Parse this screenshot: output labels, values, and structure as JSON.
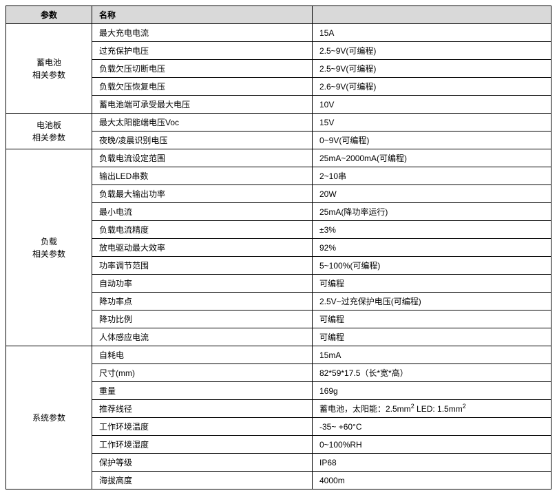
{
  "header": {
    "param": "参数",
    "name": "名称",
    "value": ""
  },
  "sections": [
    {
      "label": "蓄电池\n相关参数",
      "rows": [
        {
          "name": "最大充电电流",
          "value": "15A"
        },
        {
          "name": "过充保护电压",
          "value": "2.5~9V(可编程)"
        },
        {
          "name": "负载欠压切断电压",
          "value": "2.5~9V(可编程)"
        },
        {
          "name": "负载欠压恢复电压",
          "value": "2.6~9V(可编程)"
        },
        {
          "name": "蓄电池端可承受最大电压",
          "value": "10V"
        }
      ]
    },
    {
      "label": "电池板\n相关参数",
      "rows": [
        {
          "name": "最大太阳能端电压Voc",
          "value": "15V"
        },
        {
          "name": "夜晚/凌晨识别电压",
          "value": "0~9V(可编程)"
        }
      ]
    },
    {
      "label": "负载\n相关参数",
      "rows": [
        {
          "name": "负载电流设定范围",
          "value": "25mA~2000mA(可编程)"
        },
        {
          "name": "输出LED串数",
          "value": "2~10串"
        },
        {
          "name": "负载最大输出功率",
          "value": "20W"
        },
        {
          "name": "最小电流",
          "value": "25mA(降功率运行)"
        },
        {
          "name": "负载电流精度",
          "value": "±3%"
        },
        {
          "name": "放电驱动最大效率",
          "value": "92%"
        },
        {
          "name": "功率调节范围",
          "value": "5~100%(可编程)"
        },
        {
          "name": "自动功率",
          "value": "可编程"
        },
        {
          "name": "降功率点",
          "value": "2.5V~过充保护电压(可编程)"
        },
        {
          "name": "降功比例",
          "value": "可编程"
        },
        {
          "name": "人体感应电流",
          "value": "可编程"
        }
      ]
    },
    {
      "label": "系统参数",
      "rows": [
        {
          "name": "自耗电",
          "value": "15mA"
        },
        {
          "name": "尺寸(mm)",
          "value": "82*59*17.5（长*宽*高）"
        },
        {
          "name": "重量",
          "value": "169g"
        },
        {
          "name": "推荐线径",
          "value": "蓄电池，太阳能：2.5mm²   LED: 1.5mm²",
          "html": true
        },
        {
          "name": "工作环境温度",
          "value": "-35~ +60°C"
        },
        {
          "name": "工作环境湿度",
          "value": "0~100%RH"
        },
        {
          "name": "保护等级",
          "value": "IP68"
        },
        {
          "name": "海拔高度",
          "value": "4000m"
        }
      ]
    }
  ],
  "wire_value_parts": {
    "prefix": "蓄电池，太阳能：2.5mm",
    "sup1": "2",
    "mid": "   LED: 1.5mm",
    "sup2": "2"
  }
}
